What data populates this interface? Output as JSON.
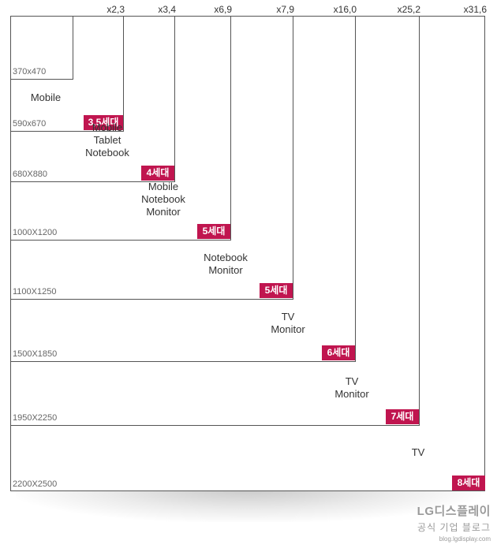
{
  "generations": [
    {
      "size": "370x470",
      "multiplier": "",
      "apps": [],
      "badge": ""
    },
    {
      "size": "590x670",
      "multiplier": "x2,3",
      "apps": [
        "Mobile"
      ],
      "badge": "3,5세대"
    },
    {
      "size": "680X880",
      "multiplier": "x3,4",
      "apps": [
        "Mobile",
        "Tablet",
        "Notebook"
      ],
      "badge": "4세대"
    },
    {
      "size": "1000X1200",
      "multiplier": "x6,9",
      "apps": [
        "Mobile",
        "Notebook",
        "Monitor"
      ],
      "badge": "5세대"
    },
    {
      "size": "1100X1250",
      "multiplier": "x7,9",
      "apps": [
        "Notebook",
        "Monitor"
      ],
      "badge": "5세대"
    },
    {
      "size": "1500X1850",
      "multiplier": "x16,0",
      "apps": [
        "TV",
        "Monitor"
      ],
      "badge": "6세대"
    },
    {
      "size": "1950X2250",
      "multiplier": "x25,2",
      "apps": [
        "TV",
        "Monitor"
      ],
      "badge": "7세대"
    },
    {
      "size": "2200X2500",
      "multiplier": "x31,6",
      "apps": [
        "TV"
      ],
      "badge": "8세대"
    }
  ],
  "logo": {
    "line1": "LG디스플레이",
    "line2": "공식 기업 블로그",
    "line3": "blog.lgdisplay.com"
  },
  "colors": {
    "badge": "#c0154f",
    "line": "#555555"
  }
}
